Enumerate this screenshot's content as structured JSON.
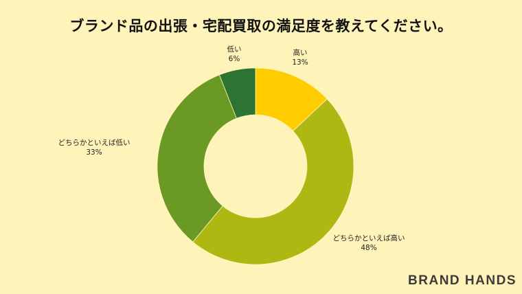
{
  "chart_data": {
    "type": "pie",
    "title": "ブランド品の出張・宅配買取の満足度を教えてください。",
    "categories": [
      "高い",
      "どちらかといえば高い",
      "どちらかといえば低い",
      "低い"
    ],
    "values": [
      13,
      48,
      33,
      6
    ],
    "value_labels": [
      "13%",
      "48%",
      "33%",
      "6%"
    ],
    "colors": [
      "#FFCC00",
      "#ADB812",
      "#6A9A23",
      "#2D7432"
    ],
    "donut": true
  },
  "brand": "BRAND HANDS"
}
